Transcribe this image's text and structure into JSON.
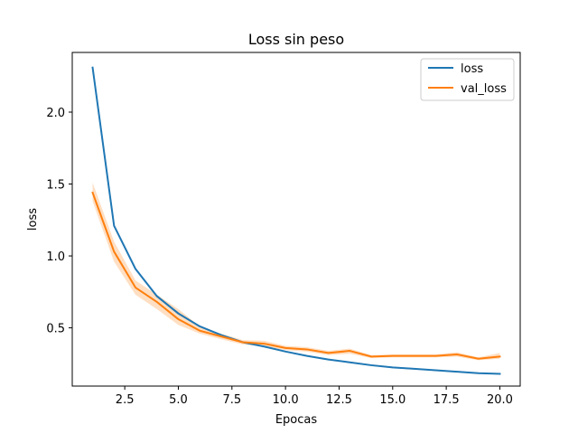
{
  "chart_data": {
    "type": "line",
    "title": "Loss sin peso",
    "xlabel": "Epocas",
    "ylabel": "loss",
    "xlim": [
      0.05,
      20.95
    ],
    "ylim": [
      0.095,
      2.415
    ],
    "x_ticks": [
      2.5,
      5.0,
      7.5,
      10.0,
      12.5,
      15.0,
      17.5,
      20.0
    ],
    "x_tick_labels": [
      "2.5",
      "5.0",
      "7.5",
      "10.0",
      "12.5",
      "15.0",
      "17.5",
      "20.0"
    ],
    "y_ticks": [
      0.5,
      1.0,
      1.5,
      2.0
    ],
    "y_tick_labels": [
      "0.5",
      "1.0",
      "1.5",
      "2.0"
    ],
    "grid": false,
    "legend_position": "top-right",
    "x": [
      1,
      2,
      3,
      4,
      5,
      6,
      7,
      8,
      9,
      10,
      11,
      12,
      13,
      14,
      15,
      16,
      17,
      18,
      19,
      20
    ],
    "series": [
      {
        "name": "loss",
        "color": "#1f77b4",
        "values": [
          2.31,
          1.21,
          0.91,
          0.72,
          0.6,
          0.51,
          0.45,
          0.4,
          0.37,
          0.335,
          0.305,
          0.28,
          0.26,
          0.24,
          0.225,
          0.215,
          0.205,
          0.195,
          0.185,
          0.18
        ],
        "band_low": [
          2.3,
          1.2,
          0.9,
          0.71,
          0.59,
          0.505,
          0.445,
          0.395,
          0.365,
          0.33,
          0.3,
          0.275,
          0.255,
          0.235,
          0.22,
          0.21,
          0.2,
          0.19,
          0.18,
          0.175
        ],
        "band_high": [
          2.32,
          1.22,
          0.92,
          0.73,
          0.61,
          0.515,
          0.455,
          0.405,
          0.375,
          0.34,
          0.31,
          0.285,
          0.265,
          0.245,
          0.23,
          0.22,
          0.21,
          0.2,
          0.19,
          0.185
        ]
      },
      {
        "name": "val_loss",
        "color": "#ff7f0e",
        "values": [
          1.44,
          1.03,
          0.78,
          0.68,
          0.56,
          0.48,
          0.44,
          0.4,
          0.39,
          0.36,
          0.35,
          0.325,
          0.34,
          0.3,
          0.305,
          0.305,
          0.305,
          0.315,
          0.285,
          0.3
        ],
        "band_low": [
          1.38,
          0.96,
          0.73,
          0.63,
          0.52,
          0.46,
          0.42,
          0.385,
          0.37,
          0.345,
          0.335,
          0.31,
          0.32,
          0.29,
          0.295,
          0.295,
          0.295,
          0.3,
          0.275,
          0.285
        ],
        "band_high": [
          1.51,
          1.1,
          0.83,
          0.73,
          0.63,
          0.51,
          0.46,
          0.415,
          0.41,
          0.375,
          0.365,
          0.34,
          0.355,
          0.31,
          0.315,
          0.315,
          0.315,
          0.33,
          0.295,
          0.325
        ]
      }
    ]
  }
}
